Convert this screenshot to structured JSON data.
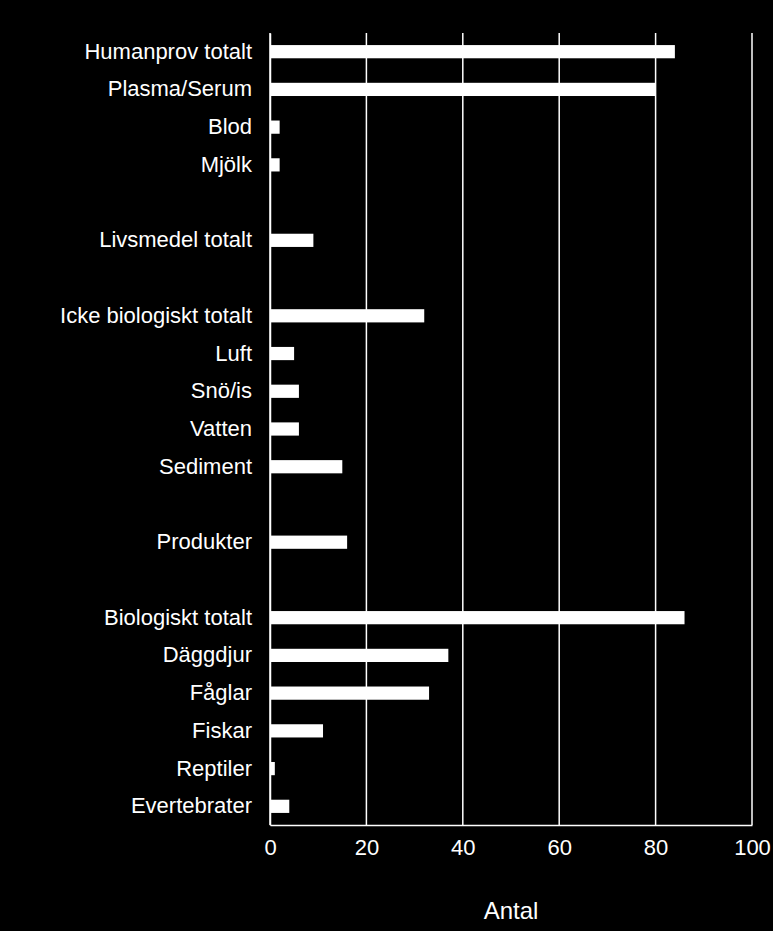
{
  "chart_data": {
    "type": "bar",
    "orientation": "horizontal",
    "categories": [
      "Humanprov totalt",
      "Plasma/Serum",
      "Blod",
      "Mjölk",
      null,
      "Livsmedel totalt",
      null,
      "Icke biologiskt totalt",
      "Luft",
      "Snö/is",
      "Vatten",
      "Sediment",
      null,
      "Produkter",
      null,
      "Biologiskt totalt",
      "Däggdjur",
      "Fåglar",
      "Fiskar",
      "Reptiler",
      "Evertebrater"
    ],
    "values": [
      84,
      80,
      2,
      2,
      null,
      9,
      null,
      32,
      5,
      6,
      6,
      15,
      null,
      16,
      null,
      86,
      37,
      33,
      11,
      1,
      4
    ],
    "color": "#ffffff",
    "xlabel": "Antal",
    "xlim": [
      0,
      100
    ],
    "xticks": [
      0,
      20,
      40,
      60,
      80,
      100
    ],
    "grid": true
  }
}
